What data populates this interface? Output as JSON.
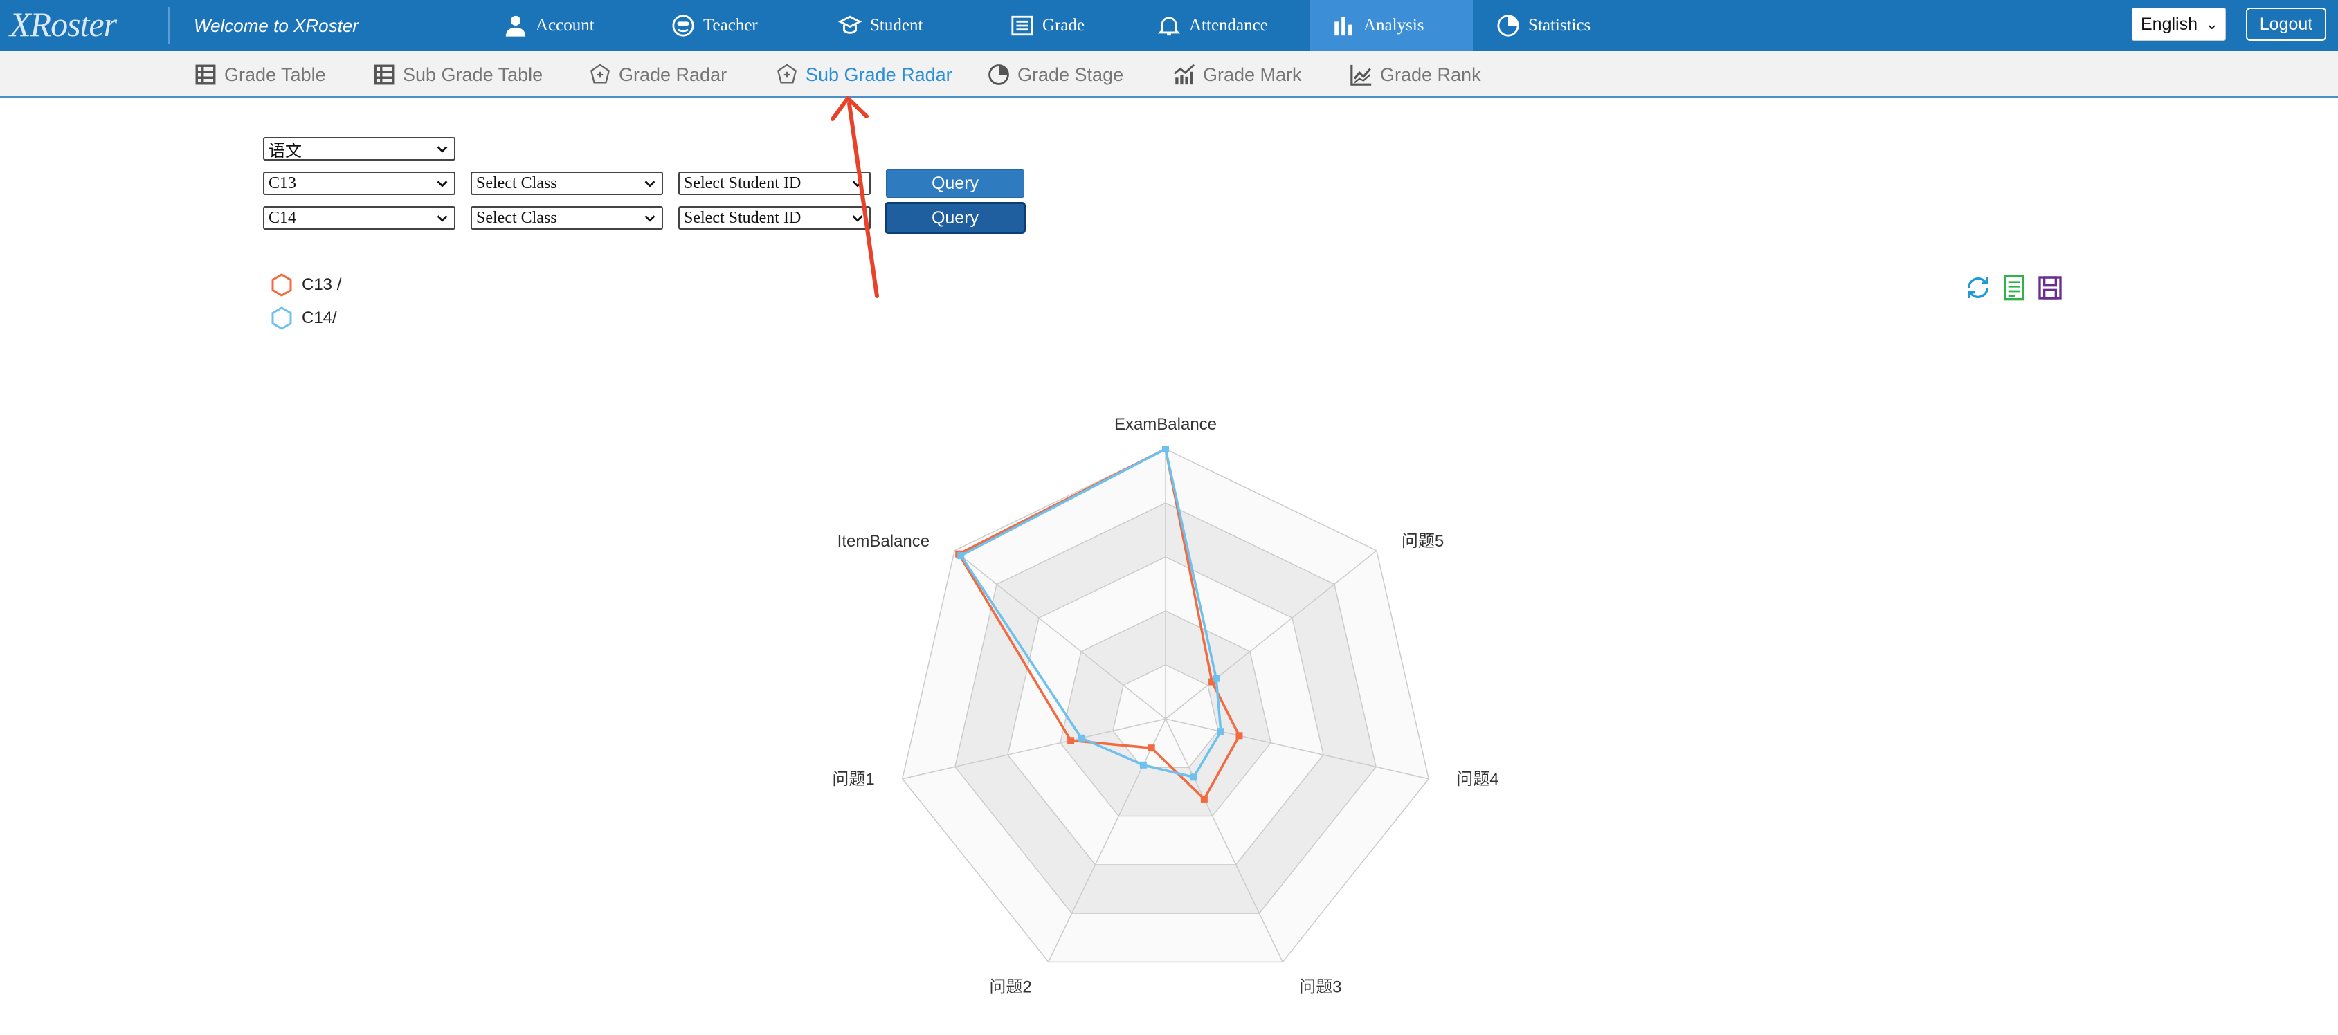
{
  "app": {
    "logo_text": "XRoster",
    "welcome": "Welcome to XRoster"
  },
  "topnav": {
    "items": [
      {
        "label": "Account",
        "icon": "user-icon"
      },
      {
        "label": "Teacher",
        "icon": "teacher-icon"
      },
      {
        "label": "Student",
        "icon": "student-icon"
      },
      {
        "label": "Grade",
        "icon": "list-icon"
      },
      {
        "label": "Attendance",
        "icon": "bell-icon"
      },
      {
        "label": "Analysis",
        "icon": "bar-chart-icon",
        "active": true
      },
      {
        "label": "Statistics",
        "icon": "pie-chart-icon"
      }
    ],
    "language": "English",
    "logout_label": "Logout"
  },
  "subnav": {
    "items": [
      {
        "label": "Grade Table",
        "icon": "table-icon"
      },
      {
        "label": "Sub Grade Table",
        "icon": "table-icon"
      },
      {
        "label": "Grade Radar",
        "icon": "radar-icon"
      },
      {
        "label": "Sub Grade Radar",
        "icon": "radar-icon",
        "active": true
      },
      {
        "label": "Grade Stage",
        "icon": "pie-chart-icon"
      },
      {
        "label": "Grade Mark",
        "icon": "bar-line-chart-icon"
      },
      {
        "label": "Grade Rank",
        "icon": "line-chart-icon"
      }
    ]
  },
  "form": {
    "subject": "语文",
    "row1": {
      "exam": "C13",
      "class": "Select Class",
      "student": "Select Student ID",
      "query_label": "Query"
    },
    "row2": {
      "exam": "C14",
      "class": "Select Class",
      "student": "Select Student ID",
      "query_label": "Query"
    }
  },
  "legend": [
    {
      "label": "C13 /",
      "color": "#f26a3f"
    },
    {
      "label": "C14/",
      "color": "#6ec1ee"
    }
  ],
  "toolbox": [
    {
      "name": "refresh-icon",
      "color": "#1e9ad6"
    },
    {
      "name": "data-view-icon",
      "color": "#2fb34a"
    },
    {
      "name": "save-image-icon",
      "color": "#6b2c91"
    }
  ],
  "chart_data": {
    "type": "radar",
    "indicators": [
      "ExamBalance",
      "问题5",
      "问题4",
      "问题3",
      "问题2",
      "问题1",
      "ItemBalance"
    ],
    "max": 1,
    "split_number": 5,
    "series": [
      {
        "name": "C13 /",
        "color": "#f26a3f",
        "values": [
          1.0,
          0.22,
          0.28,
          0.33,
          0.12,
          0.36,
          0.98
        ]
      },
      {
        "name": "C14/",
        "color": "#6ec1ee",
        "values": [
          1.0,
          0.24,
          0.21,
          0.24,
          0.19,
          0.32,
          0.97
        ]
      }
    ]
  },
  "annotation": {
    "color": "#e8432a"
  }
}
